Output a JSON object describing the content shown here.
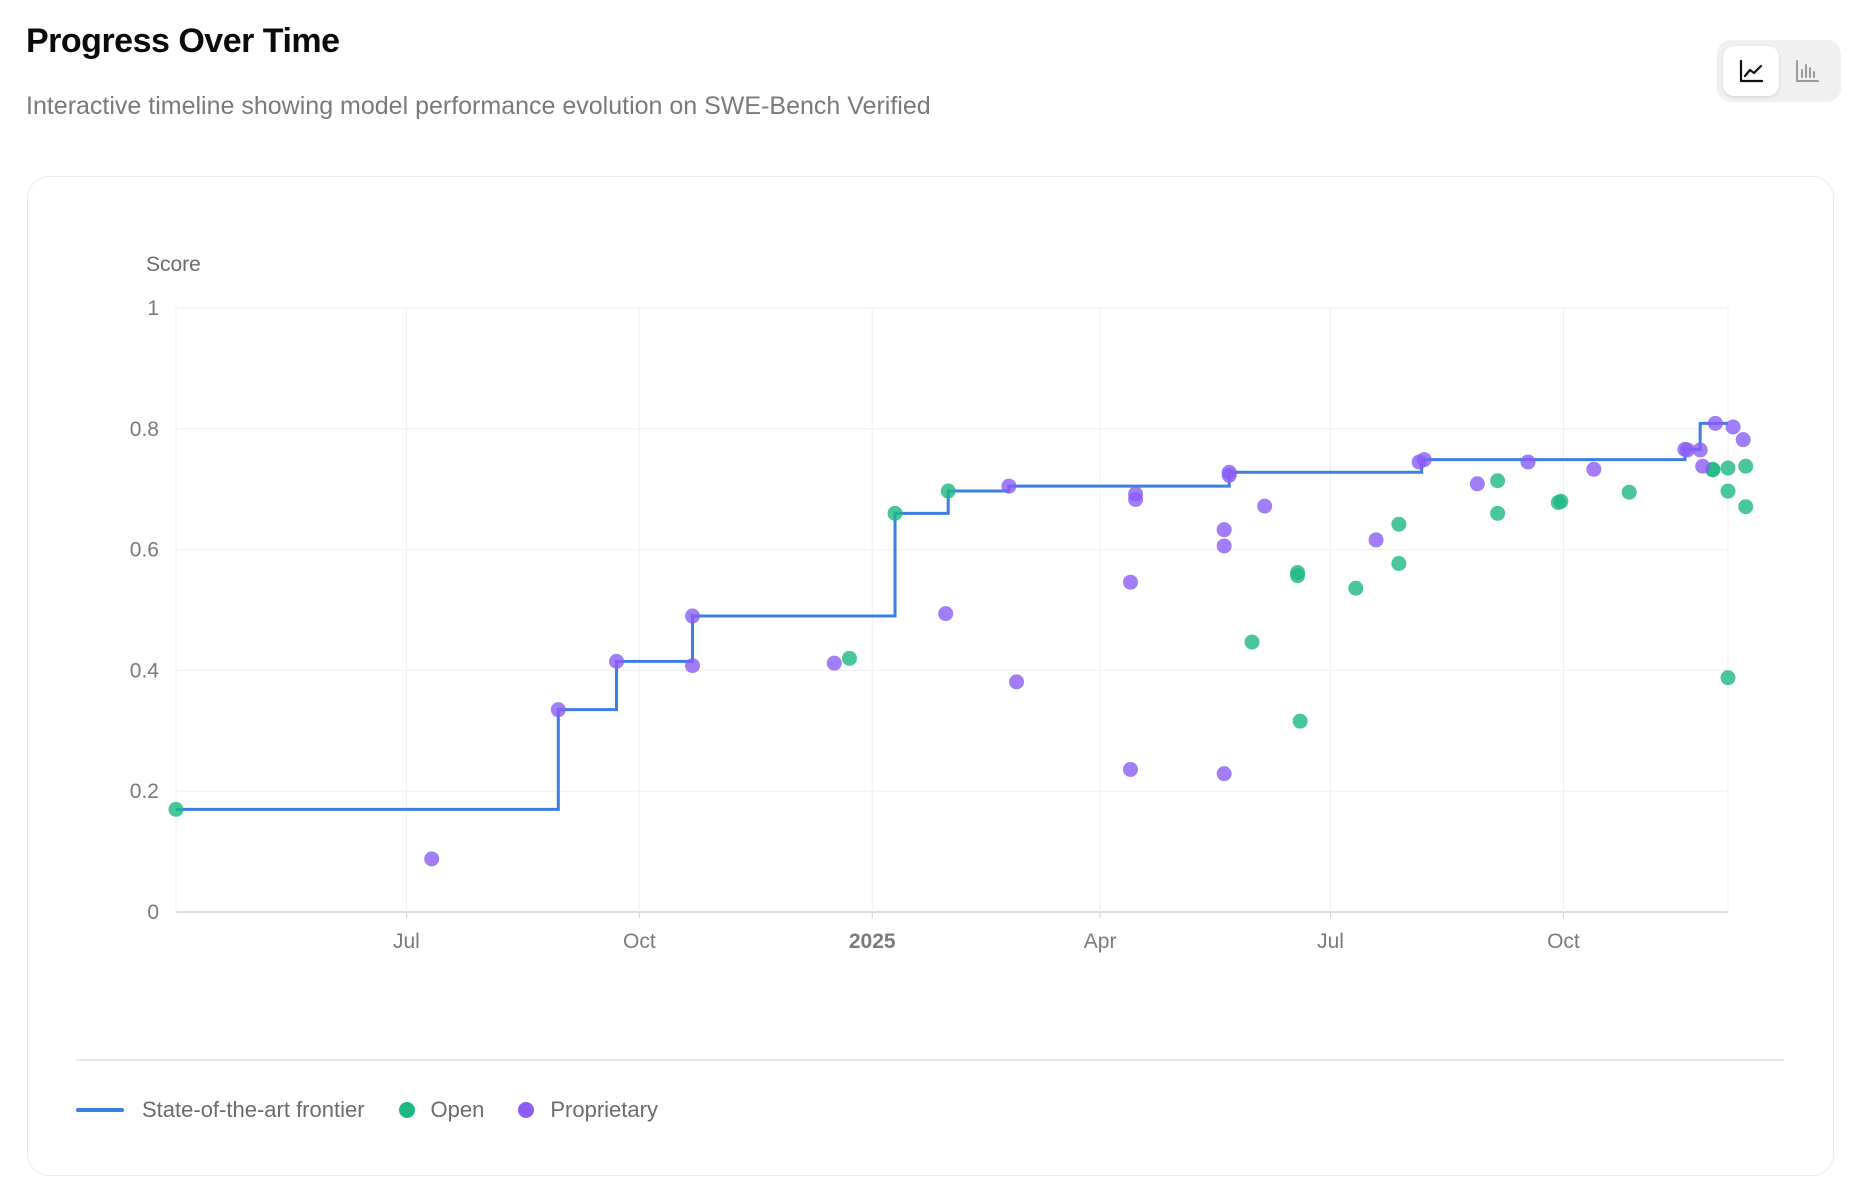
{
  "header": {
    "title": "Progress Over Time",
    "subtitle": "Interactive timeline showing model performance evolution on SWE-Bench Verified"
  },
  "toolbar": {
    "line_view_icon": "line-chart-icon",
    "bar_view_icon": "bar-chart-icon",
    "active_view": "line"
  },
  "colors": {
    "frontier": "#3b7fe0",
    "open": "#1db882",
    "proprietary": "#8b5cf6",
    "grid": "#efefef",
    "axis": "#cfcfcf"
  },
  "legend": {
    "frontier_label": "State-of-the-art frontier",
    "open_label": "Open",
    "proprietary_label": "Proprietary"
  },
  "chart_data": {
    "type": "scatter",
    "title": "",
    "ylabel": "Score",
    "xlabel": "",
    "ylim": [
      0,
      1
    ],
    "yticks": [
      "0",
      "0.2",
      "0.4",
      "0.6",
      "0.8",
      "1"
    ],
    "yticks_values": [
      0,
      0.2,
      0.4,
      0.6,
      0.8,
      1
    ],
    "xlim": [
      "2024-04-01",
      "2025-12-05"
    ],
    "xticks": [
      {
        "date": "2024-07-01",
        "label": "Jul",
        "bold": false
      },
      {
        "date": "2024-10-01",
        "label": "Oct",
        "bold": false
      },
      {
        "date": "2025-01-01",
        "label": "2025",
        "bold": true
      },
      {
        "date": "2025-04-01",
        "label": "Apr",
        "bold": false
      },
      {
        "date": "2025-07-01",
        "label": "Jul",
        "bold": false
      },
      {
        "date": "2025-10-01",
        "label": "Oct",
        "bold": false
      }
    ],
    "grid": true,
    "legend_position": "bottom",
    "frontier": [
      {
        "x": "2024-04-01",
        "y": 0.17
      },
      {
        "x": "2024-08-30",
        "y": 0.335
      },
      {
        "x": "2024-09-22",
        "y": 0.415
      },
      {
        "x": "2024-10-22",
        "y": 0.49
      },
      {
        "x": "2025-01-10",
        "y": 0.66
      },
      {
        "x": "2025-01-31",
        "y": 0.697
      },
      {
        "x": "2025-02-24",
        "y": 0.705
      },
      {
        "x": "2025-05-22",
        "y": 0.728
      },
      {
        "x": "2025-08-06",
        "y": 0.749
      },
      {
        "x": "2025-11-18",
        "y": 0.766
      },
      {
        "x": "2025-11-24",
        "y": 0.809
      },
      {
        "x": "2025-12-05",
        "y": 0.809
      }
    ],
    "series": [
      {
        "name": "Open",
        "points": [
          {
            "x": "2024-04-01",
            "y": 0.17
          },
          {
            "x": "2024-12-23",
            "y": 0.42
          },
          {
            "x": "2025-01-10",
            "y": 0.66
          },
          {
            "x": "2025-01-31",
            "y": 0.697
          },
          {
            "x": "2025-05-31",
            "y": 0.447
          },
          {
            "x": "2025-06-18",
            "y": 0.562
          },
          {
            "x": "2025-06-18",
            "y": 0.557
          },
          {
            "x": "2025-06-19",
            "y": 0.316
          },
          {
            "x": "2025-07-11",
            "y": 0.536
          },
          {
            "x": "2025-07-28",
            "y": 0.642
          },
          {
            "x": "2025-07-28",
            "y": 0.577
          },
          {
            "x": "2025-09-05",
            "y": 0.714
          },
          {
            "x": "2025-09-05",
            "y": 0.66
          },
          {
            "x": "2025-09-29",
            "y": 0.678
          },
          {
            "x": "2025-09-30",
            "y": 0.68
          },
          {
            "x": "2025-10-27",
            "y": 0.695
          },
          {
            "x": "2025-11-29",
            "y": 0.732
          },
          {
            "x": "2025-11-29",
            "y": 0.733
          },
          {
            "x": "2025-12-05",
            "y": 0.735
          },
          {
            "x": "2025-12-05",
            "y": 0.697
          },
          {
            "x": "2025-12-05",
            "y": 0.388
          },
          {
            "x": "2025-12-12",
            "y": 0.738
          },
          {
            "x": "2025-12-12",
            "y": 0.671
          }
        ]
      },
      {
        "name": "Proprietary",
        "points": [
          {
            "x": "2024-07-11",
            "y": 0.088
          },
          {
            "x": "2024-08-30",
            "y": 0.335
          },
          {
            "x": "2024-09-22",
            "y": 0.415
          },
          {
            "x": "2024-10-22",
            "y": 0.49
          },
          {
            "x": "2024-10-22",
            "y": 0.408
          },
          {
            "x": "2024-12-17",
            "y": 0.412
          },
          {
            "x": "2025-01-30",
            "y": 0.494
          },
          {
            "x": "2025-02-24",
            "y": 0.705
          },
          {
            "x": "2025-02-27",
            "y": 0.381
          },
          {
            "x": "2025-04-13",
            "y": 0.546
          },
          {
            "x": "2025-04-13",
            "y": 0.236
          },
          {
            "x": "2025-04-15",
            "y": 0.692
          },
          {
            "x": "2025-04-15",
            "y": 0.683
          },
          {
            "x": "2025-05-20",
            "y": 0.633
          },
          {
            "x": "2025-05-20",
            "y": 0.606
          },
          {
            "x": "2025-05-20",
            "y": 0.229
          },
          {
            "x": "2025-05-22",
            "y": 0.728
          },
          {
            "x": "2025-05-22",
            "y": 0.723
          },
          {
            "x": "2025-06-05",
            "y": 0.672
          },
          {
            "x": "2025-07-19",
            "y": 0.616
          },
          {
            "x": "2025-08-05",
            "y": 0.745
          },
          {
            "x": "2025-08-07",
            "y": 0.749
          },
          {
            "x": "2025-08-28",
            "y": 0.709
          },
          {
            "x": "2025-09-17",
            "y": 0.745
          },
          {
            "x": "2025-10-13",
            "y": 0.733
          },
          {
            "x": "2025-11-18",
            "y": 0.766
          },
          {
            "x": "2025-11-19",
            "y": 0.765
          },
          {
            "x": "2025-11-24",
            "y": 0.765
          },
          {
            "x": "2025-11-25",
            "y": 0.738
          },
          {
            "x": "2025-11-30",
            "y": 0.809
          },
          {
            "x": "2025-12-07",
            "y": 0.803
          },
          {
            "x": "2025-12-11",
            "y": 0.782
          }
        ]
      }
    ]
  }
}
